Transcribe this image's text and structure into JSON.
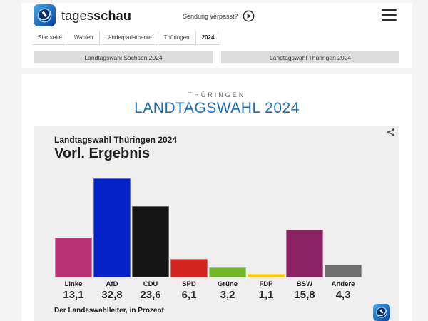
{
  "header": {
    "brand_regular": "tages",
    "brand_bold": "schau",
    "sendung_verpasst": "Sendung verpasst?",
    "breadcrumb": [
      "Startseite",
      "Wahlen",
      "Länderparlamente",
      "Thüringen",
      "2024"
    ]
  },
  "tabs": [
    {
      "label": "Landtagswahl Sachsen 2024"
    },
    {
      "label": "Landtagswahl Thüringen 2024"
    }
  ],
  "page": {
    "kicker": "THÜRINGEN",
    "title": "LANDTAGSWAHL 2024",
    "title_color": "#1b6db6"
  },
  "chart": {
    "title": "Landtagswahl Thüringen 2024",
    "subtitle": "Vorl. Ergebnis",
    "source": "Der Landeswahlleiter, in Prozent"
  },
  "chart_data": {
    "type": "bar",
    "title": "Landtagswahl Thüringen 2024 – Vorl. Ergebnis",
    "categories": [
      "Linke",
      "AfD",
      "CDU",
      "SPD",
      "Grüne",
      "FDP",
      "BSW",
      "Andere"
    ],
    "values": [
      13.1,
      32.8,
      23.6,
      6.1,
      3.2,
      1.1,
      15.8,
      4.3
    ],
    "value_labels": [
      "13,1",
      "32,8",
      "23,6",
      "6,1",
      "3,2",
      "1,1",
      "15,8",
      "4,3"
    ],
    "colors": [
      "#b93276",
      "#0522c8",
      "#161616",
      "#d42420",
      "#72b629",
      "#f9c800",
      "#8a2263",
      "#6f6f6f"
    ],
    "ylabel": "Prozent",
    "ylim": [
      0,
      35
    ],
    "grid": false,
    "legend": "none",
    "source": "Der Landeswahlleiter"
  }
}
